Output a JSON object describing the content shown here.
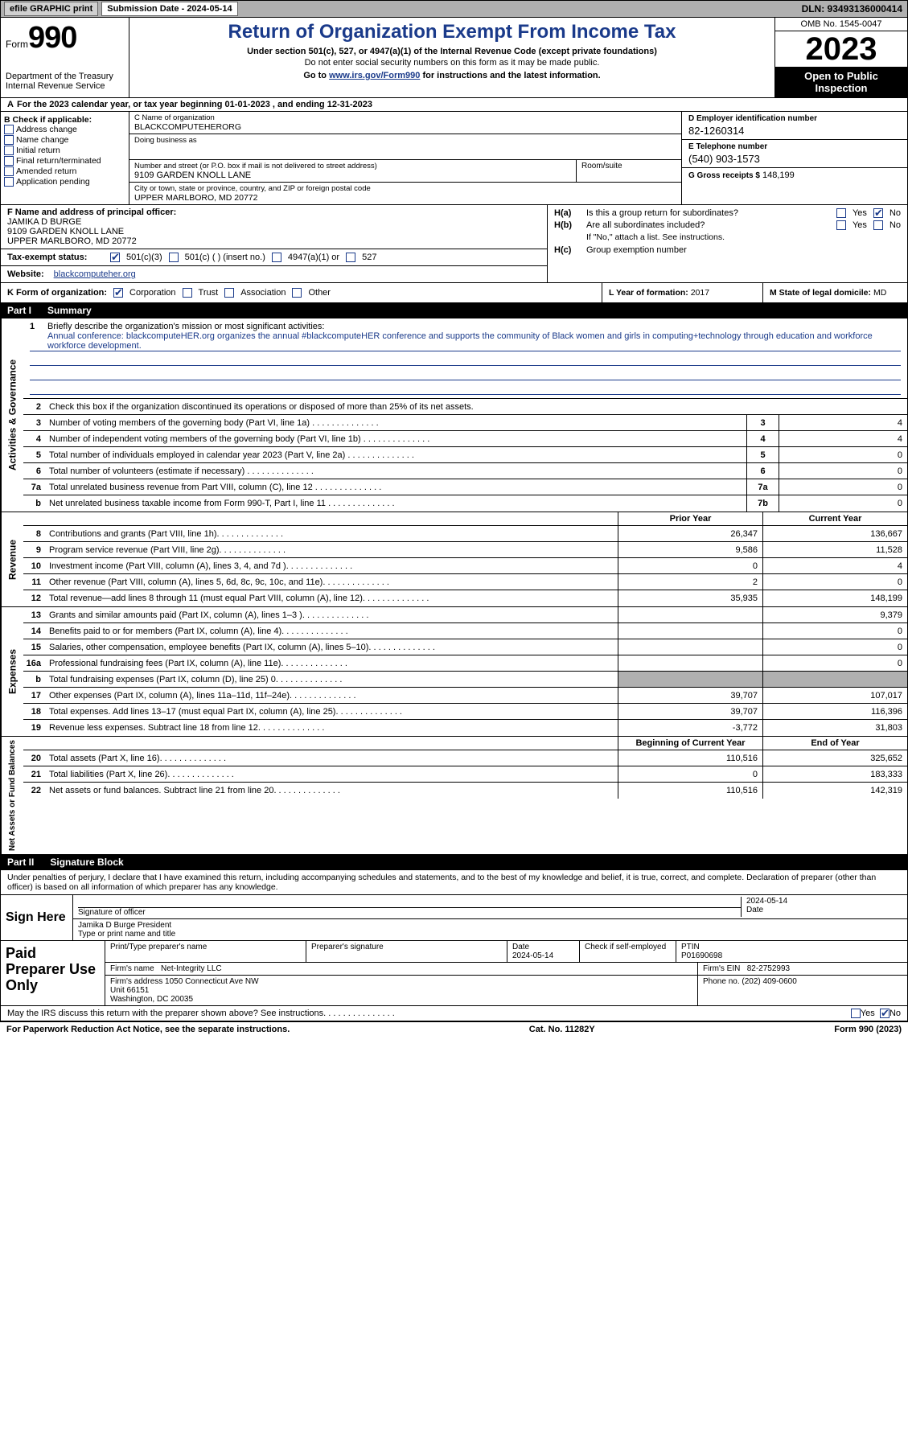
{
  "colors": {
    "blue": "#1a3a8a",
    "gray": "#b0b0b0",
    "black": "#000000",
    "white": "#ffffff"
  },
  "topbar": {
    "efile": "efile GRAPHIC print",
    "submission": "Submission Date - 2024-05-14",
    "dln": "DLN: 93493136000414"
  },
  "header": {
    "form_prefix": "Form",
    "form_num": "990",
    "dept": "Department of the Treasury",
    "irs": "Internal Revenue Service",
    "title": "Return of Organization Exempt From Income Tax",
    "sub": "Under section 501(c), 527, or 4947(a)(1) of the Internal Revenue Code (except private foundations)",
    "sub2": "Do not enter social security numbers on this form as it may be made public.",
    "goto_prefix": "Go to ",
    "goto_link": "www.irs.gov/Form990",
    "goto_suffix": " for instructions and the latest information.",
    "omb": "OMB No. 1545-0047",
    "year": "2023",
    "open": "Open to Public Inspection"
  },
  "cal_year": {
    "a": "A",
    "text": "For the 2023 calendar year, or tax year beginning 01-01-2023   , and ending 12-31-2023"
  },
  "col_b": {
    "label": "B Check if applicable:",
    "items": [
      "Address change",
      "Name change",
      "Initial return",
      "Final return/terminated",
      "Amended return",
      "Application pending"
    ]
  },
  "col_c": {
    "name_lbl": "C Name of organization",
    "name": "BLACKCOMPUTEHERORG",
    "dba_lbl": "Doing business as",
    "dba": "",
    "addr_lbl": "Number and street (or P.O. box if mail is not delivered to street address)",
    "addr": "9109 GARDEN KNOLL LANE",
    "room_lbl": "Room/suite",
    "city_lbl": "City or town, state or province, country, and ZIP or foreign postal code",
    "city": "UPPER MARLBORO, MD  20772"
  },
  "col_d": {
    "ein_lbl": "D Employer identification number",
    "ein": "82-1260314",
    "tel_lbl": "E Telephone number",
    "tel": "(540) 903-1573",
    "gross_lbl": "G Gross receipts $",
    "gross": "148,199"
  },
  "f": {
    "label": "F  Name and address of principal officer:",
    "name": "JAMIKA D BURGE",
    "addr1": "9109 GARDEN KNOLL LANE",
    "addr2": "UPPER MARLBORO, MD  20772"
  },
  "i": {
    "label": "Tax-exempt status:",
    "opt1": "501(c)(3)",
    "opt2": "501(c) (  ) (insert no.)",
    "opt3": "4947(a)(1) or",
    "opt4": "527"
  },
  "j": {
    "label": "Website:",
    "value": "blackcomputeher.org"
  },
  "h": {
    "a_label": "Is this a group return for subordinates?",
    "a_yes": "Yes",
    "a_no": "No",
    "b_label": "Are all subordinates included?",
    "b_note": "If \"No,\" attach a list. See instructions.",
    "c_label": "Group exemption number"
  },
  "k": {
    "label": "K Form of organization:",
    "opts": [
      "Corporation",
      "Trust",
      "Association",
      "Other"
    ]
  },
  "l": {
    "label": "L Year of formation:",
    "value": "2017"
  },
  "m": {
    "label": "M State of legal domicile:",
    "value": "MD"
  },
  "part1": {
    "num": "Part I",
    "title": "Summary"
  },
  "vtabs": {
    "gov": "Activities & Governance",
    "rev": "Revenue",
    "exp": "Expenses",
    "net": "Net Assets or Fund Balances"
  },
  "mission": {
    "num": "1",
    "label": "Briefly describe the organization's mission or most significant activities:",
    "text": "Annual conference: blackcomputeHER.org organizes the annual #blackcomputeHER conference and supports the community of Black women and girls in computing+technology through education and workforce workforce development."
  },
  "gov_lines": {
    "l2": {
      "num": "2",
      "text": "Check this box    if the organization discontinued its operations or disposed of more than 25% of its net assets."
    },
    "l3": {
      "num": "3",
      "text": "Number of voting members of the governing body (Part VI, line 1a)",
      "box": "3",
      "val": "4"
    },
    "l4": {
      "num": "4",
      "text": "Number of independent voting members of the governing body (Part VI, line 1b)",
      "box": "4",
      "val": "4"
    },
    "l5": {
      "num": "5",
      "text": "Total number of individuals employed in calendar year 2023 (Part V, line 2a)",
      "box": "5",
      "val": "0"
    },
    "l6": {
      "num": "6",
      "text": "Total number of volunteers (estimate if necessary)",
      "box": "6",
      "val": "0"
    },
    "l7a": {
      "num": "7a",
      "text": "Total unrelated business revenue from Part VIII, column (C), line 12",
      "box": "7a",
      "val": "0"
    },
    "l7b": {
      "num": "b",
      "text": "Net unrelated business taxable income from Form 990-T, Part I, line 11",
      "box": "7b",
      "val": "0"
    }
  },
  "rev_header": {
    "prior": "Prior Year",
    "current": "Current Year"
  },
  "rev_lines": [
    {
      "num": "8",
      "text": "Contributions and grants (Part VIII, line 1h)",
      "prior": "26,347",
      "current": "136,667"
    },
    {
      "num": "9",
      "text": "Program service revenue (Part VIII, line 2g)",
      "prior": "9,586",
      "current": "11,528"
    },
    {
      "num": "10",
      "text": "Investment income (Part VIII, column (A), lines 3, 4, and 7d )",
      "prior": "0",
      "current": "4"
    },
    {
      "num": "11",
      "text": "Other revenue (Part VIII, column (A), lines 5, 6d, 8c, 9c, 10c, and 11e)",
      "prior": "2",
      "current": "0"
    },
    {
      "num": "12",
      "text": "Total revenue—add lines 8 through 11 (must equal Part VIII, column (A), line 12)",
      "prior": "35,935",
      "current": "148,199"
    }
  ],
  "exp_lines": [
    {
      "num": "13",
      "text": "Grants and similar amounts paid (Part IX, column (A), lines 1–3 )",
      "prior": "",
      "current": "9,379"
    },
    {
      "num": "14",
      "text": "Benefits paid to or for members (Part IX, column (A), line 4)",
      "prior": "",
      "current": "0"
    },
    {
      "num": "15",
      "text": "Salaries, other compensation, employee benefits (Part IX, column (A), lines 5–10)",
      "prior": "",
      "current": "0"
    },
    {
      "num": "16a",
      "text": "Professional fundraising fees (Part IX, column (A), line 11e)",
      "prior": "",
      "current": "0"
    },
    {
      "num": "b",
      "text": "Total fundraising expenses (Part IX, column (D), line 25) 0",
      "prior": "shaded",
      "current": "shaded"
    },
    {
      "num": "17",
      "text": "Other expenses (Part IX, column (A), lines 11a–11d, 11f–24e)",
      "prior": "39,707",
      "current": "107,017"
    },
    {
      "num": "18",
      "text": "Total expenses. Add lines 13–17 (must equal Part IX, column (A), line 25)",
      "prior": "39,707",
      "current": "116,396"
    },
    {
      "num": "19",
      "text": "Revenue less expenses. Subtract line 18 from line 12",
      "prior": "-3,772",
      "current": "31,803"
    }
  ],
  "net_header": {
    "begin": "Beginning of Current Year",
    "end": "End of Year"
  },
  "net_lines": [
    {
      "num": "20",
      "text": "Total assets (Part X, line 16)",
      "prior": "110,516",
      "current": "325,652"
    },
    {
      "num": "21",
      "text": "Total liabilities (Part X, line 26)",
      "prior": "0",
      "current": "183,333"
    },
    {
      "num": "22",
      "text": "Net assets or fund balances. Subtract line 21 from line 20",
      "prior": "110,516",
      "current": "142,319"
    }
  ],
  "part2": {
    "num": "Part II",
    "title": "Signature Block"
  },
  "sig": {
    "declaration": "Under penalties of perjury, I declare that I have examined this return, including accompanying schedules and statements, and to the best of my knowledge and belief, it is true, correct, and complete. Declaration of preparer (other than officer) is based on all information of which preparer has any knowledge.",
    "sign_here": "Sign Here",
    "sig_officer_lbl": "Signature of officer",
    "date_lbl": "Date",
    "date": "2024-05-14",
    "name": "Jamika D Burge President",
    "type_lbl": "Type or print name and title"
  },
  "paid": {
    "title": "Paid Preparer Use Only",
    "print_lbl": "Print/Type preparer's name",
    "sig_lbl": "Preparer's signature",
    "date_lbl": "Date",
    "date": "2024-05-14",
    "check_lbl": "Check    if self-employed",
    "ptin_lbl": "PTIN",
    "ptin": "P01690698",
    "firm_name_lbl": "Firm's name",
    "firm_name": "Net-Integrity LLC",
    "firm_ein_lbl": "Firm's EIN",
    "firm_ein": "82-2752993",
    "firm_addr_lbl": "Firm's address",
    "firm_addr": "1050 Connecticut Ave NW\nUnit 66151\nWashington, DC  20035",
    "phone_lbl": "Phone no.",
    "phone": "(202) 409-0600"
  },
  "discuss": {
    "text": "May the IRS discuss this return with the preparer shown above? See instructions.",
    "yes": "Yes",
    "no": "No"
  },
  "footer": {
    "left": "For Paperwork Reduction Act Notice, see the separate instructions.",
    "mid": "Cat. No. 11282Y",
    "right": "Form 990 (2023)"
  }
}
